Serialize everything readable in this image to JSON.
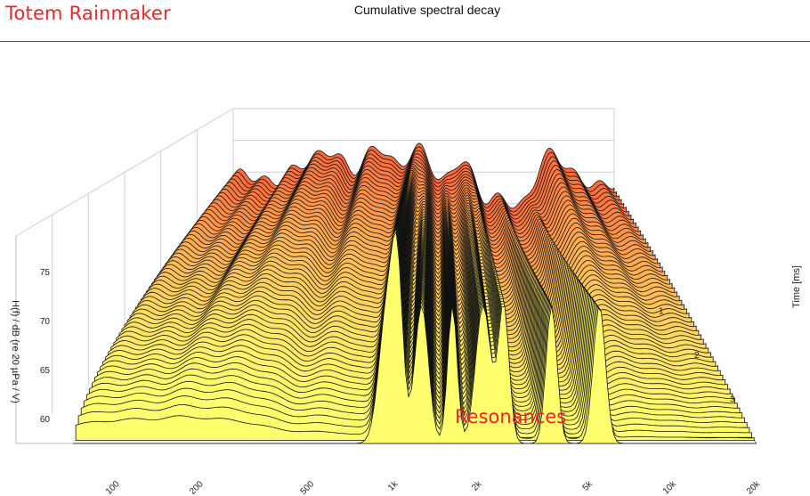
{
  "header": {
    "brand": "Totem Rainmaker",
    "title": "Cumulative spectral decay"
  },
  "chart_data": {
    "type": "waterfall",
    "title": "Cumulative spectral decay",
    "xlabel": "",
    "ylabel": "H(f) / dB (re 20 µPa / V)",
    "zlabel": "Time [ms]",
    "x_ticks": [
      "100",
      "200",
      "500",
      "1k",
      "2k",
      "5k",
      "10k",
      "20k"
    ],
    "x_tick_values": [
      100,
      200,
      500,
      1000,
      2000,
      5000,
      10000,
      20000
    ],
    "xlim": [
      70,
      20000
    ],
    "x_scale": "log",
    "y_ticks": [
      "60",
      "65",
      "70",
      "75"
    ],
    "y_tick_values": [
      60,
      65,
      70,
      75
    ],
    "ylim": [
      58,
      80
    ],
    "z_ticks": [
      "1",
      "2",
      "3"
    ],
    "z_tick_values": [
      1,
      2,
      3
    ],
    "zlim": [
      0,
      4
    ],
    "slice_count": 60,
    "grid": true,
    "annotation": "Resonances",
    "colors": {
      "front": "#ffff66",
      "back": "#ff6a3d",
      "line": "#111111"
    }
  }
}
